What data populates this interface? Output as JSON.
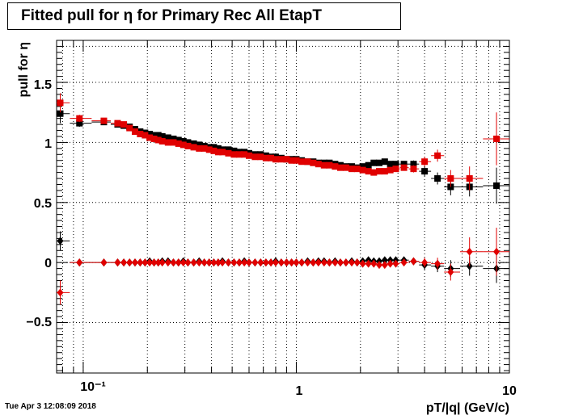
{
  "header": {
    "title": "Fitted pull for  η for Primary Rec All EtapT"
  },
  "footer": {
    "timestamp": "Tue Apr  3 12:08:09 2018"
  },
  "colors": {
    "series_black": "#000000",
    "series_red": "#e00000",
    "grid": "#000000"
  },
  "chart_data": {
    "type": "scatter",
    "title": "Fitted pull for  η for Primary Rec All EtapT",
    "xlabel": "pT/|q| (GeV/c)",
    "ylabel": "pull for  η",
    "xscale": "log",
    "xlim": [
      0.075,
      10
    ],
    "ylim": [
      -0.92,
      1.85
    ],
    "grid": true,
    "legend": "none",
    "x_tick_labels": [
      "10⁻¹",
      "1",
      "10"
    ],
    "y_tick_labels": [
      "−0.5",
      "0",
      "0.5",
      "1",
      "1.5"
    ],
    "x_ticks": [
      0.1,
      1,
      10
    ],
    "y_ticks": [
      -0.5,
      0,
      0.5,
      1,
      1.5
    ],
    "x": [
      0.078,
      0.096,
      0.125,
      0.145,
      0.155,
      0.165,
      0.175,
      0.185,
      0.195,
      0.205,
      0.215,
      0.225,
      0.235,
      0.25,
      0.265,
      0.28,
      0.295,
      0.31,
      0.33,
      0.35,
      0.37,
      0.39,
      0.41,
      0.43,
      0.45,
      0.48,
      0.51,
      0.54,
      0.57,
      0.6,
      0.64,
      0.68,
      0.72,
      0.76,
      0.8,
      0.85,
      0.9,
      0.95,
      1.0,
      1.06,
      1.13,
      1.2,
      1.27,
      1.35,
      1.43,
      1.52,
      1.61,
      1.71,
      1.82,
      1.93,
      2.05,
      2.18,
      2.31,
      2.45,
      2.6,
      2.76,
      2.93,
      3.2,
      3.55,
      4.0,
      4.6,
      5.3,
      6.5,
      8.7
    ],
    "series": [
      {
        "marker": "square",
        "color": "#000000",
        "values": [
          1.24,
          1.16,
          1.17,
          1.15,
          1.14,
          1.13,
          1.11,
          1.09,
          1.08,
          1.07,
          1.06,
          1.06,
          1.05,
          1.04,
          1.03,
          1.02,
          1.01,
          1.0,
          0.99,
          0.98,
          0.97,
          0.96,
          0.96,
          0.95,
          0.94,
          0.94,
          0.93,
          0.92,
          0.92,
          0.91,
          0.9,
          0.9,
          0.89,
          0.88,
          0.88,
          0.87,
          0.86,
          0.86,
          0.86,
          0.85,
          0.84,
          0.84,
          0.83,
          0.83,
          0.83,
          0.82,
          0.81,
          0.8,
          0.8,
          0.79,
          0.8,
          0.81,
          0.83,
          0.83,
          0.84,
          0.82,
          0.82,
          0.82,
          0.82,
          0.76,
          0.7,
          0.63,
          0.63,
          0.64
        ],
        "errors": [
          0.08,
          0.03,
          0.02,
          0.015,
          0.015,
          0.01,
          0.01,
          0.01,
          0.01,
          0.01,
          0.01,
          0.01,
          0.01,
          0.01,
          0.01,
          0.01,
          0.01,
          0.01,
          0.01,
          0.01,
          0.01,
          0.01,
          0.01,
          0.01,
          0.01,
          0.01,
          0.01,
          0.01,
          0.01,
          0.01,
          0.01,
          0.01,
          0.01,
          0.01,
          0.01,
          0.01,
          0.01,
          0.01,
          0.01,
          0.01,
          0.01,
          0.01,
          0.01,
          0.01,
          0.01,
          0.01,
          0.01,
          0.01,
          0.01,
          0.01,
          0.01,
          0.015,
          0.015,
          0.015,
          0.02,
          0.02,
          0.02,
          0.02,
          0.03,
          0.04,
          0.05,
          0.07,
          0.08,
          0.15
        ]
      },
      {
        "marker": "square",
        "color": "#e00000",
        "values": [
          1.33,
          1.2,
          1.18,
          1.16,
          1.15,
          1.12,
          1.09,
          1.07,
          1.06,
          1.04,
          1.03,
          1.02,
          1.01,
          1.0,
          1.0,
          0.99,
          0.98,
          0.97,
          0.96,
          0.95,
          0.95,
          0.94,
          0.93,
          0.92,
          0.92,
          0.91,
          0.9,
          0.9,
          0.9,
          0.89,
          0.88,
          0.88,
          0.87,
          0.87,
          0.86,
          0.86,
          0.86,
          0.85,
          0.85,
          0.84,
          0.84,
          0.83,
          0.82,
          0.81,
          0.81,
          0.8,
          0.79,
          0.79,
          0.78,
          0.78,
          0.77,
          0.76,
          0.75,
          0.76,
          0.76,
          0.77,
          0.78,
          0.79,
          0.78,
          0.84,
          0.89,
          0.7,
          0.7,
          1.03
        ],
        "errors": [
          0.08,
          0.03,
          0.02,
          0.015,
          0.015,
          0.01,
          0.01,
          0.01,
          0.01,
          0.01,
          0.01,
          0.01,
          0.01,
          0.01,
          0.01,
          0.01,
          0.01,
          0.01,
          0.01,
          0.01,
          0.01,
          0.01,
          0.01,
          0.01,
          0.01,
          0.01,
          0.01,
          0.01,
          0.01,
          0.01,
          0.01,
          0.01,
          0.01,
          0.01,
          0.01,
          0.01,
          0.01,
          0.01,
          0.01,
          0.01,
          0.01,
          0.01,
          0.01,
          0.01,
          0.01,
          0.01,
          0.01,
          0.01,
          0.01,
          0.01,
          0.01,
          0.015,
          0.015,
          0.015,
          0.02,
          0.02,
          0.02,
          0.02,
          0.03,
          0.04,
          0.05,
          0.07,
          0.1,
          0.22
        ]
      },
      {
        "marker": "diamond",
        "color": "#000000",
        "values": [
          0.18,
          0.0,
          0.0,
          0.0,
          0.0,
          0.0,
          0.0,
          0.0,
          0.0,
          0.01,
          0.0,
          0.0,
          0.01,
          0.01,
          0.0,
          0.0,
          0.01,
          0.0,
          0.0,
          0.01,
          0.0,
          0.0,
          0.0,
          0.0,
          0.01,
          0.0,
          0.0,
          0.0,
          0.01,
          0.0,
          0.0,
          0.0,
          0.0,
          0.0,
          0.01,
          0.0,
          0.0,
          0.0,
          0.0,
          0.0,
          0.01,
          0.0,
          0.01,
          0.01,
          0.0,
          0.01,
          0.0,
          0.0,
          0.01,
          0.0,
          0.01,
          0.02,
          0.01,
          0.01,
          0.02,
          0.02,
          0.02,
          0.02,
          0.01,
          -0.02,
          -0.03,
          -0.05,
          -0.03,
          -0.05
        ],
        "errors": [
          0.08,
          0.03,
          0.02,
          0.015,
          0.015,
          0.01,
          0.01,
          0.01,
          0.01,
          0.01,
          0.01,
          0.01,
          0.01,
          0.01,
          0.01,
          0.01,
          0.01,
          0.01,
          0.01,
          0.01,
          0.01,
          0.01,
          0.01,
          0.01,
          0.01,
          0.01,
          0.01,
          0.01,
          0.01,
          0.01,
          0.01,
          0.01,
          0.01,
          0.01,
          0.01,
          0.01,
          0.01,
          0.01,
          0.01,
          0.01,
          0.01,
          0.01,
          0.01,
          0.01,
          0.01,
          0.01,
          0.01,
          0.01,
          0.01,
          0.01,
          0.01,
          0.015,
          0.015,
          0.015,
          0.02,
          0.02,
          0.02,
          0.02,
          0.03,
          0.04,
          0.05,
          0.07,
          0.08,
          0.12
        ]
      },
      {
        "marker": "diamond",
        "color": "#e00000",
        "values": [
          -0.25,
          0.0,
          0.0,
          0.0,
          0.0,
          0.0,
          0.0,
          0.0,
          0.0,
          0.0,
          0.0,
          0.0,
          0.0,
          0.0,
          0.0,
          0.0,
          0.0,
          0.0,
          0.0,
          0.0,
          0.0,
          0.0,
          0.0,
          0.0,
          0.0,
          0.0,
          0.0,
          0.0,
          0.0,
          0.0,
          0.0,
          0.0,
          0.0,
          0.0,
          0.0,
          0.0,
          0.0,
          0.0,
          0.0,
          0.0,
          0.0,
          0.0,
          0.0,
          0.0,
          0.0,
          0.0,
          0.0,
          0.0,
          0.0,
          0.0,
          -0.01,
          -0.01,
          -0.01,
          -0.02,
          -0.02,
          -0.01,
          -0.01,
          0.0,
          0.01,
          0.0,
          -0.01,
          -0.08,
          0.09,
          0.09
        ],
        "errors": [
          0.1,
          0.03,
          0.02,
          0.015,
          0.015,
          0.01,
          0.01,
          0.01,
          0.01,
          0.01,
          0.01,
          0.01,
          0.01,
          0.01,
          0.01,
          0.01,
          0.01,
          0.01,
          0.01,
          0.01,
          0.01,
          0.01,
          0.01,
          0.01,
          0.01,
          0.01,
          0.01,
          0.01,
          0.01,
          0.01,
          0.01,
          0.01,
          0.01,
          0.01,
          0.01,
          0.01,
          0.01,
          0.01,
          0.01,
          0.01,
          0.01,
          0.01,
          0.01,
          0.01,
          0.01,
          0.01,
          0.01,
          0.01,
          0.01,
          0.01,
          0.01,
          0.015,
          0.015,
          0.015,
          0.02,
          0.02,
          0.02,
          0.02,
          0.03,
          0.04,
          0.05,
          0.07,
          0.12,
          0.2
        ]
      }
    ]
  }
}
